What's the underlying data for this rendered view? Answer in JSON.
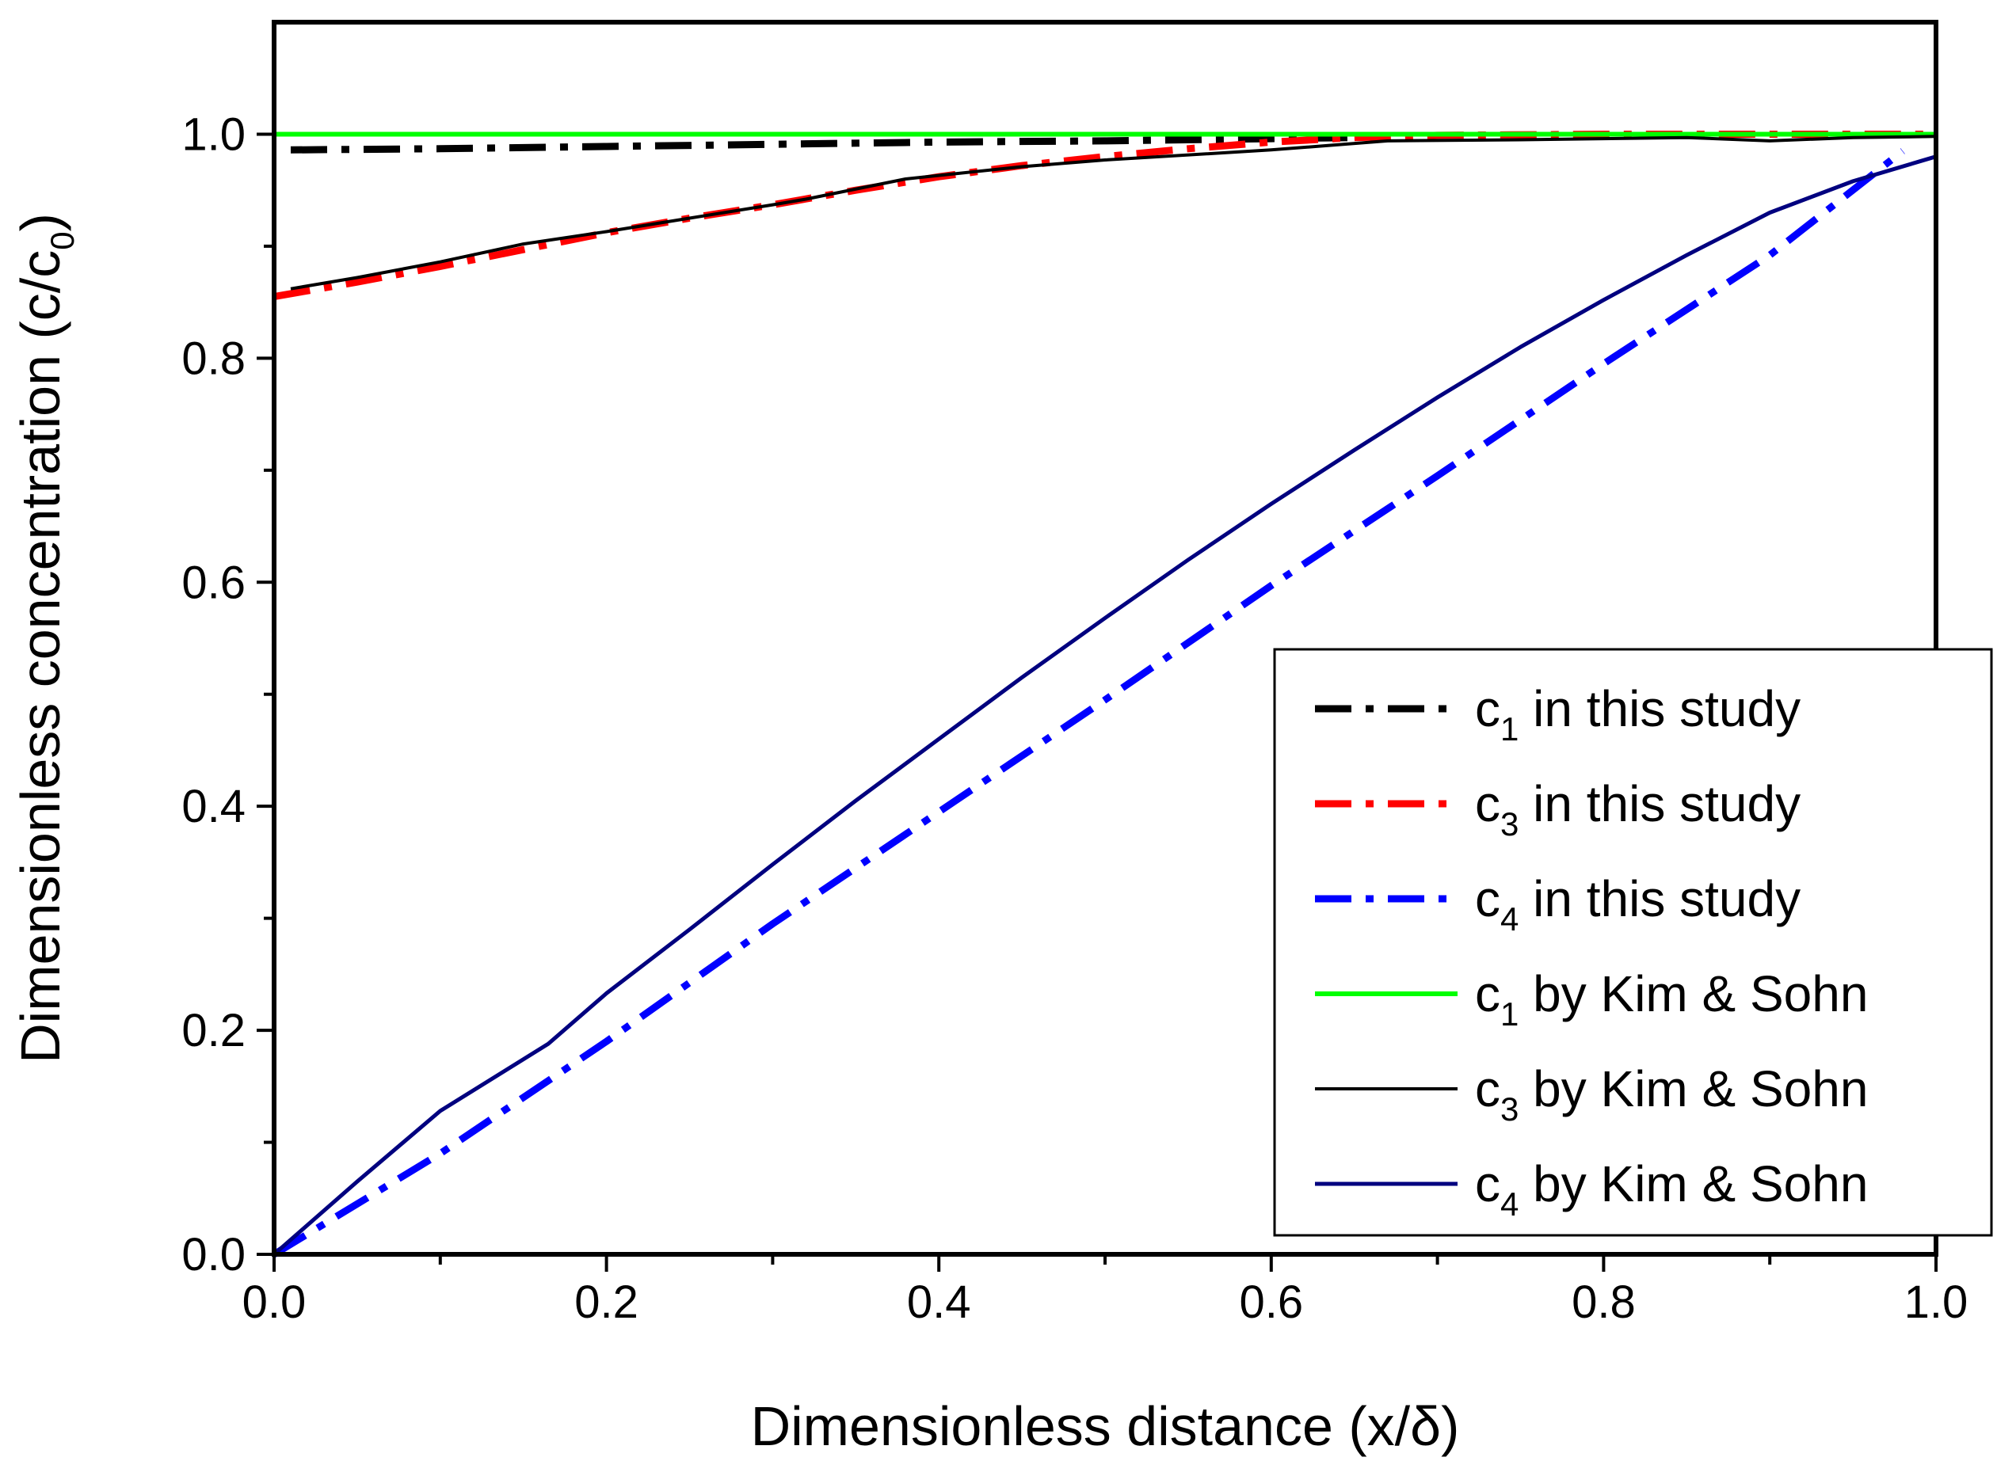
{
  "chart_data": {
    "type": "line",
    "title": "",
    "xlabel": "Dimensionless distance (x/δ)",
    "ylabel_main": "Dimensionless concentration (c/c",
    "ylabel_sub": "0",
    "ylabel_close": ")",
    "xlim": [
      0.0,
      1.0
    ],
    "ylim": [
      0.0,
      1.1
    ],
    "x_ticks": [
      "0.0",
      "0.2",
      "0.4",
      "0.6",
      "0.8",
      "1.0"
    ],
    "x_tick_values": [
      0.0,
      0.2,
      0.4,
      0.6,
      0.8,
      1.0
    ],
    "x_minor_tick_values": [
      0.1,
      0.3,
      0.5,
      0.7,
      0.9
    ],
    "y_ticks": [
      "0.0",
      "0.2",
      "0.4",
      "0.6",
      "0.8",
      "1.0"
    ],
    "y_tick_values": [
      0.0,
      0.2,
      0.4,
      0.6,
      0.8,
      1.0
    ],
    "y_minor_tick_values": [
      0.1,
      0.3,
      0.5,
      0.7,
      0.9
    ],
    "legend_position": "bottom-right",
    "series": [
      {
        "id": "c1-study",
        "label_main": "c",
        "label_sub": "1",
        "label_rest": " in this study",
        "color": "#000000",
        "dash": "dashdot",
        "width": 9,
        "x": [
          0.01,
          0.1,
          0.2,
          0.3,
          0.4,
          0.5,
          0.6,
          0.65
        ],
        "y": [
          0.986,
          0.987,
          0.989,
          0.991,
          0.993,
          0.994,
          0.996,
          0.997
        ]
      },
      {
        "id": "c3-study",
        "label_main": "c",
        "label_sub": "3",
        "label_rest": " in this study",
        "color": "#ff0000",
        "dash": "dashdot",
        "width": 9,
        "x": [
          0.0,
          0.05,
          0.1,
          0.15,
          0.2,
          0.25,
          0.3,
          0.35,
          0.4,
          0.45,
          0.5,
          0.55,
          0.6,
          0.65,
          0.7,
          0.8,
          0.9,
          1.0
        ],
        "y": [
          0.855,
          0.868,
          0.882,
          0.897,
          0.912,
          0.925,
          0.937,
          0.95,
          0.962,
          0.972,
          0.98,
          0.987,
          0.993,
          0.997,
          0.999,
          1.0,
          1.0,
          1.0
        ]
      },
      {
        "id": "c4-study",
        "label_main": "c",
        "label_sub": "4",
        "label_rest": " in this study",
        "color": "#0000ff",
        "dash": "dashdot",
        "width": 9,
        "x": [
          0.0,
          0.1,
          0.2,
          0.3,
          0.4,
          0.5,
          0.6,
          0.7,
          0.8,
          0.9,
          0.98
        ],
        "y": [
          0.0,
          0.09,
          0.19,
          0.295,
          0.395,
          0.495,
          0.597,
          0.695,
          0.795,
          0.892,
          0.985
        ]
      },
      {
        "id": "c1-kim",
        "label_main": "c",
        "label_sub": "1",
        "label_rest": " by Kim & Sohn",
        "color": "#00ff00",
        "dash": "solid",
        "width": 6,
        "x": [
          0.0,
          1.0
        ],
        "y": [
          1.0,
          1.0
        ]
      },
      {
        "id": "c3-kim",
        "label_main": "c",
        "label_sub": "3",
        "label_rest": " by Kim & Sohn",
        "color": "#000000",
        "dash": "solid",
        "width": 4,
        "x": [
          0.01,
          0.05,
          0.1,
          0.15,
          0.2,
          0.25,
          0.3,
          0.32,
          0.38,
          0.45,
          0.5,
          0.6,
          0.67,
          0.75,
          0.85,
          0.9,
          0.95,
          1.0
        ],
        "y": [
          0.862,
          0.872,
          0.886,
          0.902,
          0.913,
          0.925,
          0.937,
          0.942,
          0.96,
          0.971,
          0.977,
          0.986,
          0.994,
          0.995,
          0.997,
          0.994,
          0.997,
          0.998
        ]
      },
      {
        "id": "c4-kim",
        "label_main": "c",
        "label_sub": "4",
        "label_rest": " by Kim & Sohn",
        "color": "#00007f",
        "dash": "solid",
        "width": 5,
        "x": [
          0.0,
          0.05,
          0.1,
          0.165,
          0.2,
          0.25,
          0.3,
          0.35,
          0.4,
          0.45,
          0.5,
          0.55,
          0.6,
          0.65,
          0.7,
          0.75,
          0.8,
          0.85,
          0.9,
          0.95,
          1.0
        ],
        "y": [
          0.0,
          0.065,
          0.128,
          0.188,
          0.233,
          0.29,
          0.348,
          0.405,
          0.46,
          0.515,
          0.568,
          0.62,
          0.67,
          0.718,
          0.765,
          0.81,
          0.852,
          0.892,
          0.93,
          0.958,
          0.98
        ]
      }
    ]
  }
}
